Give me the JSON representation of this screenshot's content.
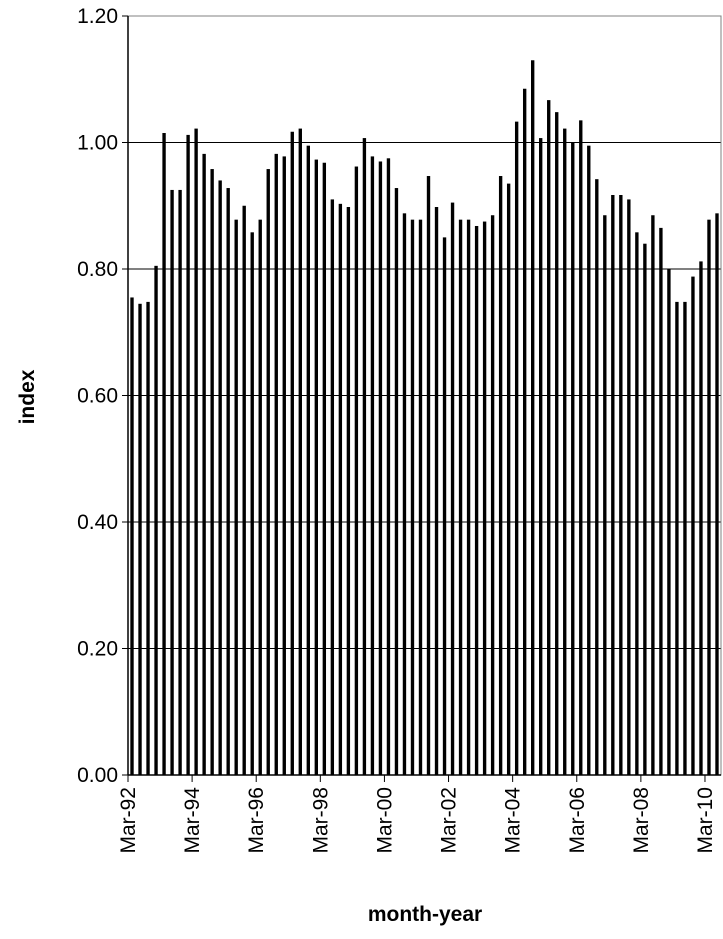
{
  "chart_data": {
    "type": "bar",
    "title": "",
    "xlabel": "month-year",
    "ylabel": "index",
    "ylim": [
      0,
      1.2
    ],
    "yticks": [
      "0.00",
      "0.20",
      "0.40",
      "0.60",
      "0.80",
      "1.00",
      "1.20"
    ],
    "xtick_labels": [
      "Mar-92",
      "Mar-94",
      "Mar-96",
      "Mar-98",
      "Mar-00",
      "Mar-02",
      "Mar-04",
      "Mar-06",
      "Mar-08",
      "Mar-10"
    ],
    "grid": "horizontal",
    "bar_color": "#000000",
    "frequency": "quarterly",
    "categories": [
      "Mar-92",
      "Jun-92",
      "Sep-92",
      "Dec-92",
      "Mar-93",
      "Jun-93",
      "Sep-93",
      "Dec-93",
      "Mar-94",
      "Jun-94",
      "Sep-94",
      "Dec-94",
      "Mar-95",
      "Jun-95",
      "Sep-95",
      "Dec-95",
      "Mar-96",
      "Jun-96",
      "Sep-96",
      "Dec-96",
      "Mar-97",
      "Jun-97",
      "Sep-97",
      "Dec-97",
      "Mar-98",
      "Jun-98",
      "Sep-98",
      "Dec-98",
      "Mar-99",
      "Jun-99",
      "Sep-99",
      "Dec-99",
      "Mar-00",
      "Jun-00",
      "Sep-00",
      "Dec-00",
      "Mar-01",
      "Jun-01",
      "Sep-01",
      "Dec-01",
      "Mar-02",
      "Jun-02",
      "Sep-02",
      "Dec-02",
      "Mar-03",
      "Jun-03",
      "Sep-03",
      "Dec-03",
      "Mar-04",
      "Jun-04",
      "Sep-04",
      "Dec-04",
      "Mar-05",
      "Jun-05",
      "Sep-05",
      "Dec-05",
      "Mar-06",
      "Jun-06",
      "Sep-06",
      "Dec-06",
      "Mar-07",
      "Jun-07",
      "Sep-07",
      "Dec-07",
      "Mar-08",
      "Jun-08",
      "Sep-08",
      "Dec-08",
      "Mar-09",
      "Jun-09",
      "Sep-09",
      "Dec-09",
      "Mar-10",
      "Jun-10"
    ],
    "values": [
      0.755,
      0.745,
      0.748,
      0.805,
      1.015,
      0.925,
      0.925,
      1.012,
      1.022,
      0.982,
      0.958,
      0.94,
      0.928,
      0.878,
      0.9,
      0.858,
      0.878,
      0.958,
      0.982,
      0.978,
      1.017,
      1.022,
      0.995,
      0.973,
      0.968,
      0.91,
      0.903,
      0.898,
      0.962,
      1.007,
      0.978,
      0.97,
      0.975,
      0.928,
      0.888,
      0.878,
      0.878,
      0.947,
      0.898,
      0.85,
      0.905,
      0.878,
      0.878,
      0.868,
      0.875,
      0.885,
      0.947,
      0.935,
      1.033,
      1.085,
      1.13,
      1.007,
      1.067,
      1.048,
      1.022,
      1.0,
      1.035,
      0.995,
      0.942,
      0.885,
      0.917,
      0.917,
      0.91,
      0.858,
      0.84,
      0.885,
      0.865,
      0.8,
      0.748,
      0.748,
      0.788,
      0.812,
      0.878,
      0.888
    ]
  }
}
